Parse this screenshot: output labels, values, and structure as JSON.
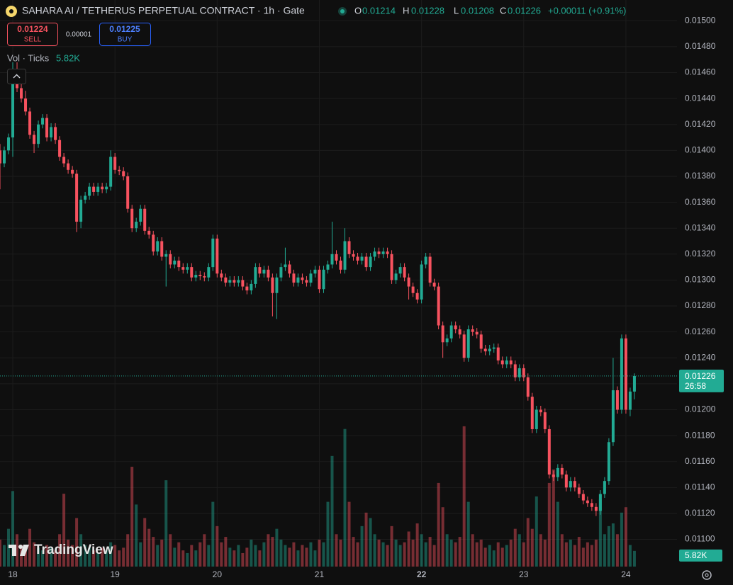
{
  "chart_data": {
    "type": "candlestick",
    "title": "SAHARA AI / TETHERUS PERPETUAL CONTRACT · 1h · Gate",
    "legend": {
      "o": "O",
      "h": "H",
      "l": "L",
      "c": "C",
      "change": "+0.00011 (+0.91%)"
    },
    "trade_panel": {
      "sell_price": "0.01224",
      "sell": "SELL",
      "spread": "0.00001",
      "buy_price": "0.01225",
      "buy": "BUY"
    },
    "volume_title": "Vol · Ticks",
    "last_volume_label": "5.82K",
    "countdown": "26:58",
    "watermark": "TradingView",
    "up_color": "#22ab94",
    "down_color": "#f7525f",
    "grid": true,
    "xlim": [
      -3,
      156
    ],
    "xticks": [
      {
        "value": 0,
        "label": "18"
      },
      {
        "value": 24,
        "label": "19"
      },
      {
        "value": 48,
        "label": "20"
      },
      {
        "value": 72,
        "label": "21"
      },
      {
        "value": 96,
        "label": "22",
        "bold": true
      },
      {
        "value": 120,
        "label": "23"
      },
      {
        "value": 144,
        "label": "24"
      }
    ],
    "ylim": [
      0.01079,
      0.01516
    ],
    "yticks": [
      {
        "value": 0.015,
        "label": "0.01500"
      },
      {
        "value": 0.0148,
        "label": "0.01480"
      },
      {
        "value": 0.0146,
        "label": "0.01460"
      },
      {
        "value": 0.0144,
        "label": "0.01440"
      },
      {
        "value": 0.0142,
        "label": "0.01420"
      },
      {
        "value": 0.014,
        "label": "0.01400"
      },
      {
        "value": 0.0138,
        "label": "0.01380"
      },
      {
        "value": 0.0136,
        "label": "0.01360"
      },
      {
        "value": 0.0134,
        "label": "0.01340"
      },
      {
        "value": 0.0132,
        "label": "0.01320"
      },
      {
        "value": 0.013,
        "label": "0.01300"
      },
      {
        "value": 0.0128,
        "label": "0.01280"
      },
      {
        "value": 0.0126,
        "label": "0.01260"
      },
      {
        "value": 0.0124,
        "label": "0.01240"
      },
      {
        "value": 0.0122,
        "label": "0.01220"
      },
      {
        "value": 0.012,
        "label": "0.01200"
      },
      {
        "value": 0.0118,
        "label": "0.01180"
      },
      {
        "value": 0.0116,
        "label": "0.01160"
      },
      {
        "value": 0.0114,
        "label": "0.01140"
      },
      {
        "value": 0.0112,
        "label": "0.01120"
      },
      {
        "value": 0.011,
        "label": "0.01100"
      }
    ],
    "y2lim": [
      0,
      210
    ],
    "x": [
      -3,
      -2,
      -1,
      0,
      1,
      2,
      3,
      4,
      5,
      6,
      7,
      8,
      9,
      10,
      11,
      12,
      13,
      14,
      15,
      16,
      17,
      18,
      19,
      20,
      21,
      22,
      23,
      24,
      25,
      26,
      27,
      28,
      29,
      30,
      31,
      32,
      33,
      34,
      35,
      36,
      37,
      38,
      39,
      40,
      41,
      42,
      43,
      44,
      45,
      46,
      47,
      48,
      49,
      50,
      51,
      52,
      53,
      54,
      55,
      56,
      57,
      58,
      59,
      60,
      61,
      62,
      63,
      64,
      65,
      66,
      67,
      68,
      69,
      70,
      71,
      72,
      73,
      74,
      75,
      76,
      77,
      78,
      79,
      80,
      81,
      82,
      83,
      84,
      85,
      86,
      87,
      88,
      89,
      90,
      91,
      92,
      93,
      94,
      95,
      96,
      97,
      98,
      99,
      100,
      101,
      102,
      103,
      104,
      105,
      106,
      107,
      108,
      109,
      110,
      111,
      112,
      113,
      114,
      115,
      116,
      117,
      118,
      119,
      120,
      121,
      122,
      123,
      124,
      125,
      126,
      127,
      128,
      129,
      130,
      131,
      132,
      133,
      134,
      135,
      136,
      137,
      138,
      139,
      140,
      141,
      142,
      143,
      144,
      145,
      146
    ],
    "open": [
      0.014,
      0.0139,
      0.014,
      0.0141,
      0.01462,
      0.01448,
      0.0144,
      0.0143,
      0.01412,
      0.01405,
      0.0142,
      0.01425,
      0.0141,
      0.01418,
      0.01408,
      0.01395,
      0.0139,
      0.01385,
      0.01382,
      0.01345,
      0.01362,
      0.01365,
      0.01372,
      0.01368,
      0.01372,
      0.0137,
      0.01372,
      0.01395,
      0.01385,
      0.01384,
      0.0138,
      0.01355,
      0.0134,
      0.01345,
      0.01355,
      0.01338,
      0.01335,
      0.01322,
      0.0133,
      0.01318,
      0.0132,
      0.01312,
      0.01315,
      0.0131,
      0.01308,
      0.0131,
      0.01302,
      0.01304,
      0.01303,
      0.01302,
      0.0131,
      0.01332,
      0.01305,
      0.01302,
      0.01298,
      0.013,
      0.01298,
      0.013,
      0.01295,
      0.01292,
      0.01297,
      0.0131,
      0.01305,
      0.01308,
      0.01302,
      0.0129,
      0.01302,
      0.0131,
      0.01312,
      0.01305,
      0.01298,
      0.01302,
      0.013,
      0.01298,
      0.01305,
      0.01308,
      0.01293,
      0.01308,
      0.01312,
      0.0132,
      0.01315,
      0.01308,
      0.0133,
      0.0132,
      0.01318,
      0.01315,
      0.01318,
      0.0131,
      0.01318,
      0.01322,
      0.0132,
      0.01322,
      0.0132,
      0.013,
      0.01305,
      0.0131,
      0.01302,
      0.01295,
      0.0129,
      0.01285,
      0.01312,
      0.01318,
      0.01298,
      0.01295,
      0.01265,
      0.01252,
      0.01255,
      0.01265,
      0.01262,
      0.01258,
      0.0124,
      0.01262,
      0.0126,
      0.01258,
      0.01247,
      0.01245,
      0.01247,
      0.01248,
      0.01238,
      0.01235,
      0.01238,
      0.01235,
      0.01225,
      0.01232,
      0.01225,
      0.0121,
      0.01185,
      0.012,
      0.01198,
      0.01185,
      0.0115,
      0.01148,
      0.01155,
      0.0115,
      0.0114,
      0.01145,
      0.0114,
      0.01135,
      0.0113,
      0.01128,
      0.01125,
      0.01122,
      0.01135,
      0.01145,
      0.01175,
      0.01215,
      0.012,
      0.01255,
      0.012,
      0.01214
    ],
    "high": [
      0.01405,
      0.01403,
      0.01413,
      0.01468,
      0.01468,
      0.01451,
      0.01446,
      0.01433,
      0.01415,
      0.01423,
      0.01428,
      0.01428,
      0.01421,
      0.01421,
      0.01411,
      0.01398,
      0.01393,
      0.01388,
      0.01385,
      0.01365,
      0.01368,
      0.01375,
      0.01375,
      0.01375,
      0.01375,
      0.01375,
      0.014,
      0.01398,
      0.01388,
      0.01387,
      0.01383,
      0.01358,
      0.01348,
      0.01358,
      0.01358,
      0.01341,
      0.01338,
      0.01333,
      0.01333,
      0.01323,
      0.01323,
      0.01318,
      0.01318,
      0.01313,
      0.01313,
      0.01313,
      0.01307,
      0.01307,
      0.01306,
      0.01313,
      0.01335,
      0.01335,
      0.01308,
      0.01305,
      0.01303,
      0.01303,
      0.01303,
      0.01303,
      0.01298,
      0.013,
      0.01313,
      0.01313,
      0.01311,
      0.01311,
      0.01305,
      0.01305,
      0.01313,
      0.01325,
      0.01315,
      0.01308,
      0.01305,
      0.01305,
      0.01303,
      0.01308,
      0.01311,
      0.01311,
      0.01311,
      0.01315,
      0.01345,
      0.01323,
      0.01318,
      0.0134,
      0.01333,
      0.01323,
      0.01321,
      0.01321,
      0.01321,
      0.01321,
      0.01325,
      0.01325,
      0.01325,
      0.01325,
      0.01323,
      0.01308,
      0.01313,
      0.01313,
      0.01305,
      0.01298,
      0.01293,
      0.01315,
      0.01321,
      0.01321,
      0.01301,
      0.01298,
      0.01268,
      0.01258,
      0.01268,
      0.01268,
      0.01265,
      0.01261,
      0.01265,
      0.01265,
      0.01263,
      0.01261,
      0.0125,
      0.0125,
      0.01251,
      0.01251,
      0.01241,
      0.01241,
      0.01241,
      0.01238,
      0.01235,
      0.01235,
      0.01228,
      0.01213,
      0.01203,
      0.01203,
      0.01201,
      0.01188,
      0.01153,
      0.01158,
      0.01158,
      0.01153,
      0.01148,
      0.01148,
      0.01143,
      0.01138,
      0.01133,
      0.01131,
      0.01128,
      0.01138,
      0.01148,
      0.01178,
      0.0124,
      0.01218,
      0.01258,
      0.01258,
      0.01217,
      0.01228
    ],
    "low": [
      0.0137,
      0.01387,
      0.01397,
      0.01395,
      0.01445,
      0.01437,
      0.01427,
      0.01409,
      0.01398,
      0.01402,
      0.01417,
      0.01407,
      0.01407,
      0.01405,
      0.01392,
      0.01387,
      0.01382,
      0.01379,
      0.01337,
      0.0134,
      0.01359,
      0.01362,
      0.01365,
      0.01365,
      0.01367,
      0.01367,
      0.01369,
      0.01382,
      0.01381,
      0.01377,
      0.01352,
      0.01337,
      0.01337,
      0.01342,
      0.01335,
      0.01332,
      0.01319,
      0.01319,
      0.01315,
      0.01295,
      0.01309,
      0.01309,
      0.01307,
      0.01305,
      0.01305,
      0.01299,
      0.01299,
      0.013,
      0.01299,
      0.01299,
      0.01307,
      0.01302,
      0.01299,
      0.01295,
      0.01295,
      0.01295,
      0.01295,
      0.01292,
      0.01289,
      0.01289,
      0.01294,
      0.01302,
      0.01302,
      0.01299,
      0.01272,
      0.0127,
      0.01299,
      0.01307,
      0.01302,
      0.01295,
      0.01295,
      0.01297,
      0.01295,
      0.01295,
      0.01302,
      0.0129,
      0.0129,
      0.01305,
      0.01309,
      0.01312,
      0.01305,
      0.01305,
      0.01317,
      0.01315,
      0.01312,
      0.01312,
      0.01307,
      0.01307,
      0.01315,
      0.01317,
      0.01317,
      0.01317,
      0.01297,
      0.01297,
      0.01302,
      0.01299,
      0.01285,
      0.01287,
      0.01282,
      0.01282,
      0.01309,
      0.01295,
      0.01292,
      0.01262,
      0.0124,
      0.01249,
      0.01252,
      0.01259,
      0.01255,
      0.01237,
      0.01237,
      0.01257,
      0.01255,
      0.01244,
      0.01242,
      0.01242,
      0.01244,
      0.01235,
      0.01232,
      0.01232,
      0.01232,
      0.01222,
      0.01222,
      0.01222,
      0.01207,
      0.01182,
      0.01182,
      0.01195,
      0.01182,
      0.01147,
      0.01145,
      0.01145,
      0.01147,
      0.01137,
      0.01137,
      0.01137,
      0.01132,
      0.01127,
      0.01125,
      0.01122,
      0.01118,
      0.01119,
      0.01132,
      0.01142,
      0.01172,
      0.01197,
      0.01197,
      0.01197,
      0.01195,
      0.01208
    ],
    "close": [
      0.0139,
      0.014,
      0.0141,
      0.01462,
      0.01448,
      0.0144,
      0.0143,
      0.01412,
      0.01405,
      0.0142,
      0.01425,
      0.0141,
      0.01418,
      0.01408,
      0.01395,
      0.0139,
      0.01385,
      0.01382,
      0.01345,
      0.01362,
      0.01365,
      0.01372,
      0.01368,
      0.01372,
      0.0137,
      0.01372,
      0.01395,
      0.01385,
      0.01384,
      0.0138,
      0.01355,
      0.0134,
      0.01345,
      0.01355,
      0.01338,
      0.01335,
      0.01322,
      0.0133,
      0.01318,
      0.0132,
      0.01312,
      0.01315,
      0.0131,
      0.01308,
      0.0131,
      0.01302,
      0.01304,
      0.01303,
      0.01302,
      0.0131,
      0.01332,
      0.01305,
      0.01302,
      0.01298,
      0.013,
      0.01298,
      0.013,
      0.01295,
      0.01292,
      0.01297,
      0.0131,
      0.01305,
      0.01308,
      0.01302,
      0.0129,
      0.01302,
      0.0131,
      0.01312,
      0.01305,
      0.01298,
      0.01302,
      0.013,
      0.01298,
      0.01305,
      0.01308,
      0.01293,
      0.01308,
      0.01312,
      0.0132,
      0.01315,
      0.01308,
      0.0133,
      0.0132,
      0.01318,
      0.01315,
      0.01318,
      0.0131,
      0.01318,
      0.01322,
      0.0132,
      0.01322,
      0.0132,
      0.013,
      0.01305,
      0.0131,
      0.01302,
      0.01295,
      0.0129,
      0.01285,
      0.01312,
      0.01318,
      0.01298,
      0.01295,
      0.01265,
      0.01252,
      0.01255,
      0.01265,
      0.01262,
      0.01258,
      0.0124,
      0.01262,
      0.0126,
      0.01258,
      0.01247,
      0.01245,
      0.01247,
      0.01248,
      0.01238,
      0.01235,
      0.01238,
      0.01235,
      0.01225,
      0.01232,
      0.01225,
      0.0121,
      0.01185,
      0.012,
      0.01198,
      0.01185,
      0.0115,
      0.01148,
      0.01155,
      0.0115,
      0.0114,
      0.01145,
      0.0114,
      0.01135,
      0.0113,
      0.01128,
      0.01125,
      0.01122,
      0.01135,
      0.01145,
      0.01175,
      0.01215,
      0.012,
      0.01255,
      0.012,
      0.01214,
      0.01226
    ],
    "volume": [
      10,
      8,
      14,
      28,
      12,
      8,
      7,
      14,
      9,
      7,
      6,
      8,
      7,
      6,
      12,
      27,
      10,
      8,
      18,
      12,
      8,
      7,
      6,
      5,
      7,
      6,
      9,
      8,
      6,
      7,
      12,
      37,
      23,
      9,
      18,
      14,
      11,
      8,
      10,
      32,
      12,
      7,
      9,
      6,
      5,
      8,
      6,
      9,
      12,
      8,
      24,
      15,
      9,
      11,
      7,
      6,
      8,
      5,
      7,
      10,
      8,
      6,
      9,
      12,
      11,
      14,
      10,
      8,
      7,
      9,
      6,
      8,
      7,
      9,
      6,
      10,
      9,
      24,
      41,
      12,
      10,
      51,
      24,
      11,
      9,
      15,
      20,
      18,
      12,
      10,
      9,
      8,
      15,
      10,
      8,
      9,
      13,
      10,
      16,
      12,
      9,
      11,
      8,
      31,
      22,
      12,
      10,
      9,
      11,
      52,
      24,
      12,
      9,
      10,
      7,
      8,
      6,
      9,
      7,
      8,
      10,
      14,
      12,
      9,
      18,
      14,
      26,
      12,
      10,
      31,
      36,
      24,
      12,
      9,
      10,
      8,
      11,
      7,
      9,
      8,
      10,
      25,
      12,
      15,
      16,
      12,
      20,
      22,
      8,
      5.82
    ]
  }
}
